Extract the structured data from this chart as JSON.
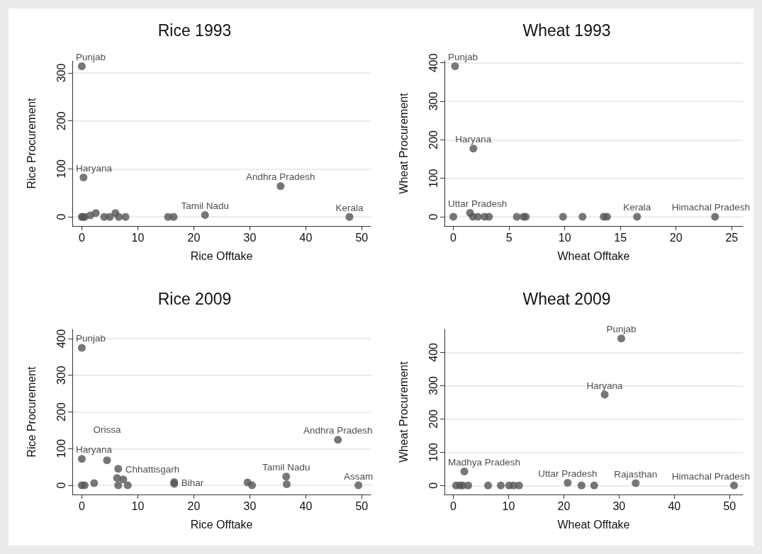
{
  "chart_data": [
    {
      "type": "scatter",
      "title": "Rice 1993",
      "xlabel": "Rice Offtake",
      "ylabel": "Rice Procurement",
      "color": "#555555",
      "marker": "circle",
      "grid": "y",
      "xlim": [
        -1.7,
        51.6
      ],
      "ylim": [
        -19,
        325
      ],
      "xticks": [
        0,
        10,
        20,
        30,
        40,
        50
      ],
      "yticks": [
        0,
        100,
        200,
        300
      ],
      "x": [
        0,
        0.2,
        0.5,
        1.5,
        2.5,
        4,
        5,
        6,
        6.6,
        7.8,
        15.4,
        16.4,
        22,
        35.5,
        47.8,
        0,
        0.3
      ],
      "values": [
        0,
        0,
        0,
        3,
        8,
        0,
        0,
        8,
        0,
        0,
        0,
        0,
        4,
        64,
        0,
        314,
        82
      ],
      "annotations": [
        {
          "text": "Punjab",
          "x": 0,
          "y": 314
        },
        {
          "text": "Haryana",
          "x": 0.3,
          "y": 82
        },
        {
          "text": "Andhra Pradesh",
          "x": 35.5,
          "y": 64
        },
        {
          "text": "Tamil Nadu",
          "x": 22,
          "y": 4
        },
        {
          "text": "Kerala",
          "x": 47.8,
          "y": 0
        }
      ]
    },
    {
      "type": "scatter",
      "title": "Wheat 1993",
      "xlabel": "Wheat Offtake",
      "ylabel": "Wheat Procurement",
      "color": "#555555",
      "marker": "circle",
      "grid": "y",
      "xlim": [
        -0.8,
        26
      ],
      "ylim": [
        -24,
        405
      ],
      "xticks": [
        0,
        5,
        10,
        15,
        20,
        25
      ],
      "yticks": [
        0,
        100,
        200,
        300,
        400
      ],
      "x": [
        0,
        1.5,
        1.75,
        2.2,
        2.8,
        3.2,
        5.7,
        6.3,
        6.5,
        9.85,
        11.6,
        13.5,
        13.8,
        16.5,
        23.5,
        0.15,
        1.8
      ],
      "values": [
        0,
        10,
        0,
        0,
        0,
        0,
        0,
        0,
        0,
        0,
        0,
        0,
        0,
        0,
        0,
        391,
        177
      ],
      "annotations": [
        {
          "text": "Punjab",
          "x": 0.15,
          "y": 391
        },
        {
          "text": "Haryana",
          "x": 1.8,
          "y": 177
        },
        {
          "text": "Uttar Pradesh",
          "x": 1.5,
          "y": 10
        },
        {
          "text": "Kerala",
          "x": 16.5,
          "y": 0
        },
        {
          "text": "Himachal Pradesh",
          "x": 23.5,
          "y": 0
        }
      ]
    },
    {
      "type": "scatter",
      "title": "Rice 2009",
      "xlabel": "Rice Offtake",
      "ylabel": "Rice Procurement",
      "color": "#555555",
      "marker": "circle",
      "grid": "y",
      "xlim": [
        -1.7,
        51.6
      ],
      "ylim": [
        -25,
        425
      ],
      "xticks": [
        0,
        10,
        20,
        30,
        40,
        50
      ],
      "yticks": [
        0,
        100,
        200,
        300,
        400
      ],
      "x": [
        0,
        0,
        4.5,
        6.5,
        0,
        0.5,
        2.2,
        6.5,
        8.2,
        6.3,
        7.4,
        16.5,
        16.5,
        45.75,
        36.5,
        36.6,
        29.6,
        30.4,
        49.4
      ],
      "values": [
        375,
        72,
        68,
        45,
        0,
        0,
        6,
        0,
        0,
        20,
        16,
        4,
        9,
        124,
        24,
        3,
        8,
        0,
        0
      ],
      "annotations": [
        {
          "text": "Punjab",
          "x": 0,
          "y": 375
        },
        {
          "text": "Haryana",
          "x": 0,
          "y": 72
        },
        {
          "text": "Orissa",
          "x": 4.5,
          "y": 68
        },
        {
          "text": "Chhattisgarh",
          "x": 6.5,
          "y": 45
        },
        {
          "text": "Bihar",
          "x": 16.5,
          "y": 9
        },
        {
          "text": "Andhra Pradesh",
          "x": 45.75,
          "y": 124
        },
        {
          "text": "Tamil Nadu",
          "x": 36.5,
          "y": 24
        },
        {
          "text": "Assam",
          "x": 49.4,
          "y": 0
        }
      ]
    },
    {
      "type": "scatter",
      "title": "Wheat 2009",
      "xlabel": "Wheat Offtake",
      "ylabel": "Wheat Procurement",
      "color": "#555555",
      "marker": "circle",
      "grid": "y",
      "xlim": [
        -1.6,
        52.4
      ],
      "ylim": [
        -27,
        469
      ],
      "xticks": [
        0,
        10,
        20,
        30,
        40,
        50
      ],
      "yticks": [
        0,
        100,
        200,
        300,
        400
      ],
      "x": [
        30.4,
        27.4,
        2,
        33,
        50.8,
        20.7,
        0.5,
        1.2,
        1.7,
        2.7,
        6.3,
        8.6,
        10.1,
        10.9,
        11.9,
        23.2,
        25.5
      ],
      "values": [
        442,
        273,
        42,
        7,
        0,
        8,
        0,
        0,
        0,
        0,
        0,
        0,
        0,
        0,
        0,
        0,
        0
      ],
      "annotations": [
        {
          "text": "Punjab",
          "x": 30.4,
          "y": 442
        },
        {
          "text": "Haryana",
          "x": 27.4,
          "y": 273
        },
        {
          "text": "Madhya Pradesh",
          "x": 2,
          "y": 42
        },
        {
          "text": "Rajasthan",
          "x": 33,
          "y": 7
        },
        {
          "text": "Himachal Pradesh",
          "x": 50.8,
          "y": 0
        },
        {
          "text": "Uttar Pradesh",
          "x": 20.7,
          "y": 8
        }
      ]
    }
  ]
}
